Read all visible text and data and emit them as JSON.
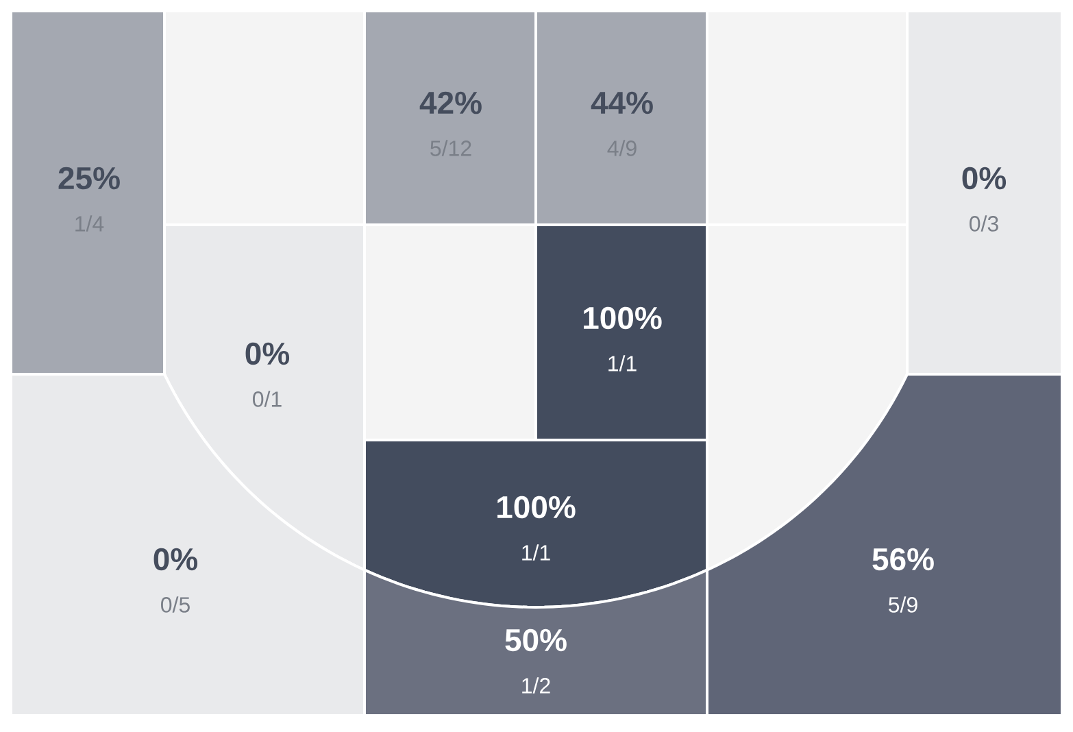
{
  "chart_data": {
    "type": "other",
    "categories": [
      "1/4",
      null,
      "5/12",
      "4/9",
      null,
      "0/3",
      "0/1",
      null,
      "1/1",
      null,
      "1/1",
      "0/5",
      "1/2",
      "5/9"
    ],
    "values": [
      25,
      null,
      42,
      44,
      null,
      0,
      0,
      null,
      100,
      null,
      100,
      0,
      50,
      56
    ],
    "value_labels": [
      "25%",
      null,
      "42%",
      "44%",
      null,
      "0%",
      "0%",
      null,
      "100%",
      null,
      "100%",
      "0%",
      "50%",
      "56%"
    ],
    "colors": [
      "#a4a8b1",
      "#f4f4f4",
      "#a4a8b1",
      "#a4a8b1",
      "#f4f4f4",
      "#e9eaec",
      "#e9eaec",
      "#f4f4f4",
      "#434c5e",
      "#f4f4f4",
      "#434c5e",
      "#e9eaec",
      "#6b7080",
      "#5f6577"
    ]
  }
}
